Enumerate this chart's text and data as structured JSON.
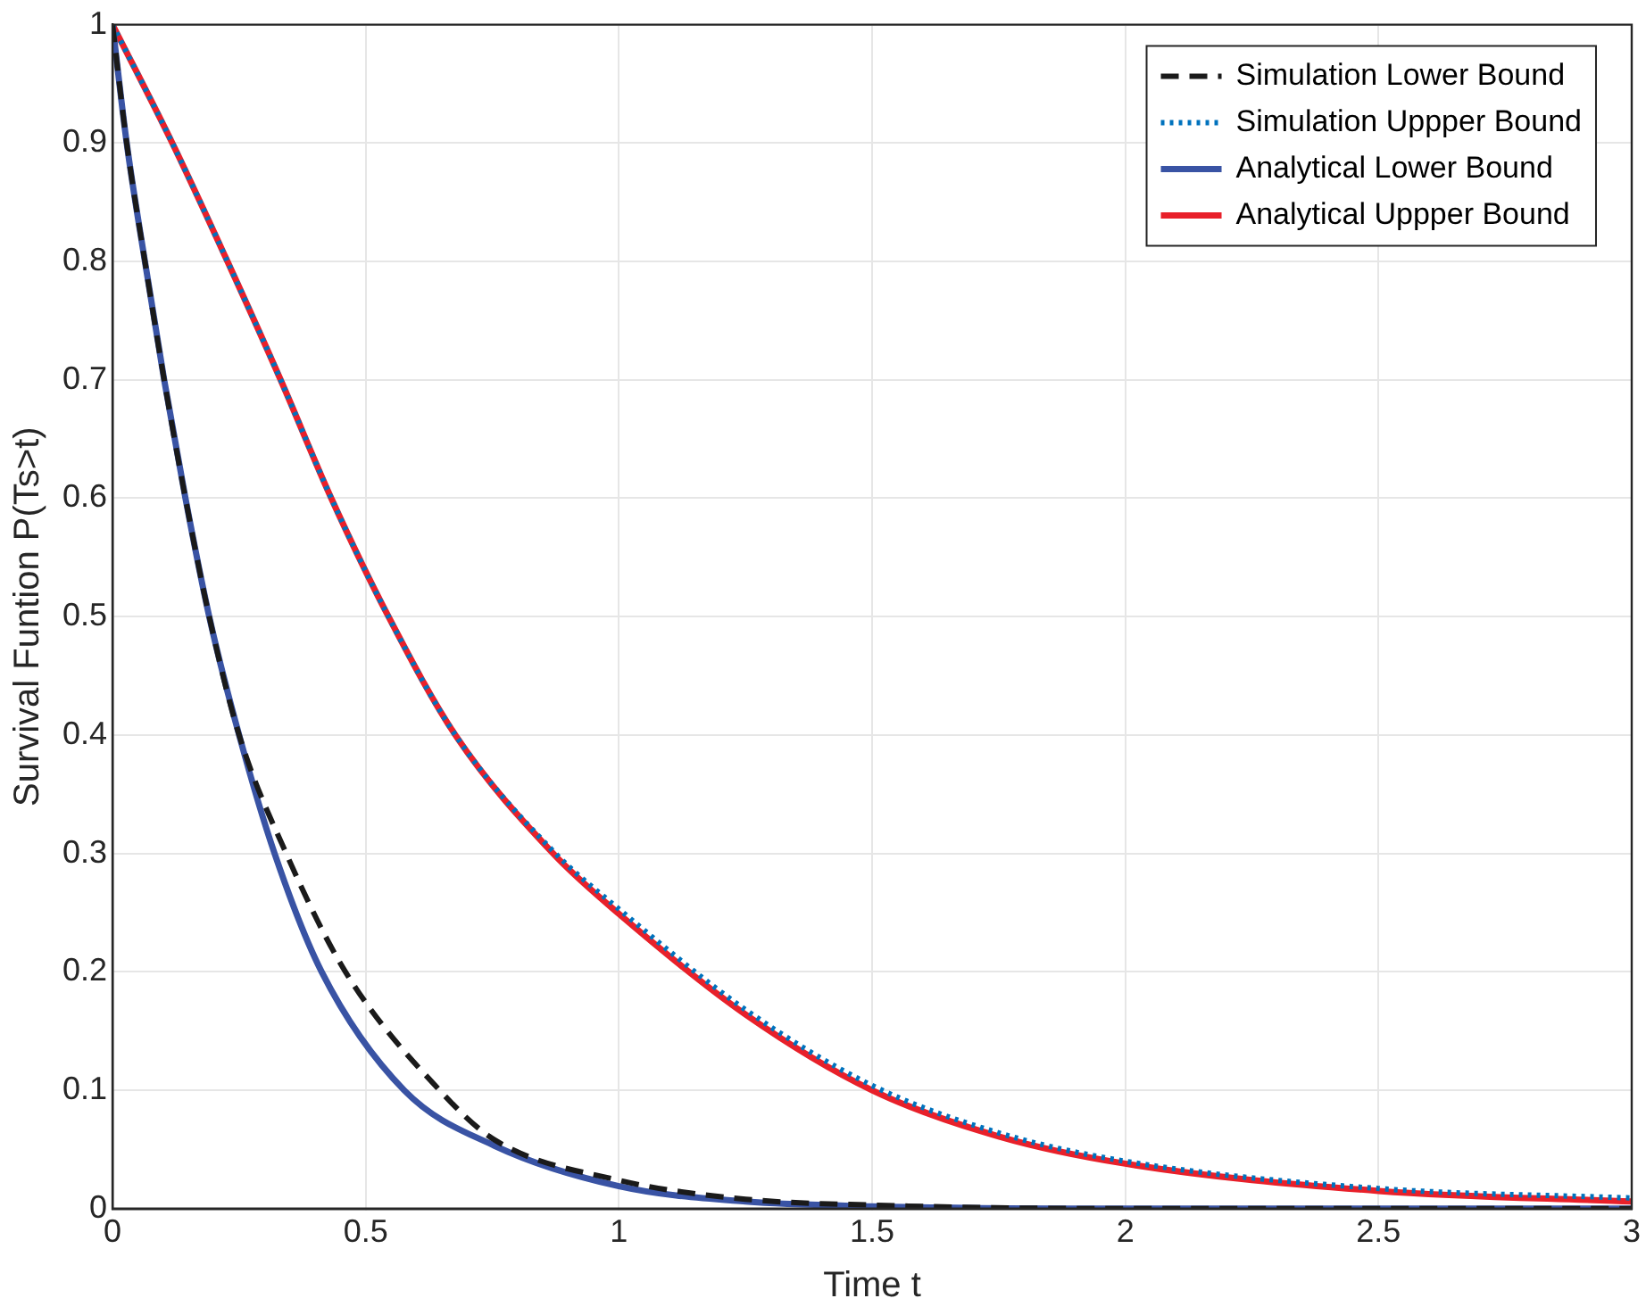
{
  "chart_data": {
    "type": "line",
    "xlabel": "Time t",
    "ylabel": "Survival Funtion P(Ts>t)",
    "xlim": [
      0,
      3
    ],
    "ylim": [
      0,
      1
    ],
    "xticks": [
      0,
      0.5,
      1,
      1.5,
      2,
      2.5,
      3
    ],
    "yticks": [
      0,
      0.1,
      0.2,
      0.3,
      0.4,
      0.5,
      0.6,
      0.7,
      0.8,
      0.9,
      1
    ],
    "grid": true,
    "legend": "top right",
    "marker": "none",
    "series": [
      {
        "name": "Simulation Lower Bound",
        "color": "#1a1a1a",
        "line_style": "dashed",
        "x": [
          0,
          0.028,
          0.064,
          0.102,
          0.144,
          0.191,
          0.25,
          0.343,
          0.46,
          0.646,
          0.755,
          1,
          1.25,
          1.5,
          2,
          3
        ],
        "values": [
          1,
          0.9,
          0.8,
          0.7,
          0.6,
          0.5,
          0.4,
          0.3,
          0.2,
          0.1,
          0.058,
          0.024,
          0.008,
          0.003,
          0,
          0
        ]
      },
      {
        "name": "Simulation Uppper Bound",
        "color": "#0072bd",
        "line_style": "dotted",
        "x": [
          0,
          0.118,
          0.227,
          0.332,
          0.432,
          0.545,
          0.677,
          0.87,
          1,
          1.25,
          1.5,
          1.75,
          2,
          2.5,
          3
        ],
        "values": [
          1,
          0.9,
          0.8,
          0.7,
          0.6,
          0.5,
          0.4,
          0.302,
          0.253,
          0.168,
          0.104,
          0.064,
          0.04,
          0.017,
          0.009
        ]
      },
      {
        "name": "Analytical Lower Bound",
        "color": "#3953a4",
        "line_style": "solid",
        "x": [
          0,
          0.028,
          0.064,
          0.102,
          0.144,
          0.191,
          0.25,
          0.32,
          0.413,
          0.576,
          0.755,
          1,
          1.25,
          1.5,
          2,
          2.5,
          3
        ],
        "values": [
          1,
          0.9,
          0.8,
          0.7,
          0.6,
          0.5,
          0.4,
          0.3,
          0.2,
          0.1,
          0.053,
          0.019,
          0.006,
          0.002,
          0,
          0,
          0
        ]
      },
      {
        "name": "Analytical Uppper Bound",
        "color": "#e8202a",
        "line_style": "solid",
        "x": [
          0,
          0.118,
          0.227,
          0.332,
          0.432,
          0.545,
          0.677,
          0.87,
          1,
          1.25,
          1.5,
          1.75,
          2,
          2.5,
          3
        ],
        "values": [
          1,
          0.9,
          0.8,
          0.7,
          0.6,
          0.5,
          0.4,
          0.3,
          0.249,
          0.164,
          0.1,
          0.061,
          0.038,
          0.015,
          0.006
        ]
      }
    ]
  }
}
